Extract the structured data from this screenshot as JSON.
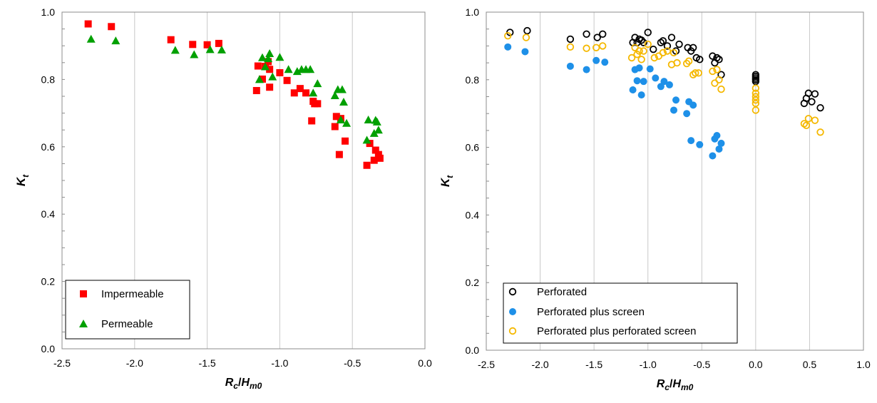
{
  "chart_data": [
    {
      "type": "scatter",
      "ylabel_main": "K",
      "ylabel_sub": "t",
      "xlabel_main_1": "R",
      "xlabel_sub_1": "c",
      "xlabel_slash": "/",
      "xlabel_main_2": "H",
      "xlabel_sub_2": "m0",
      "xlim": [
        -2.5,
        0.0
      ],
      "ylim": [
        0.0,
        1.0
      ],
      "xticks": [
        -2.5,
        -2.0,
        -1.5,
        -1.0,
        -0.5,
        0.0
      ],
      "xtick_labels": [
        "-2.5",
        "-2.0",
        "-1.5",
        "-1.0",
        "-0.5",
        "0.0"
      ],
      "yticks": [
        0.0,
        0.2,
        0.4,
        0.6,
        0.8,
        1.0
      ],
      "ytick_labels": [
        "0.0",
        "0.2",
        "0.4",
        "0.6",
        "0.8",
        "1.0"
      ],
      "grid": "vertical",
      "legend_position": "bottom-left",
      "series": [
        {
          "name": "Impermeable",
          "marker": "square",
          "color": "#ff0000",
          "x": [
            -2.32,
            -2.16,
            -1.75,
            -1.6,
            -1.5,
            -1.42,
            -1.16,
            -1.15,
            -1.12,
            -1.1,
            -1.08,
            -1.07,
            -1.07,
            -1.0,
            -0.95,
            -0.9,
            -0.86,
            -0.82,
            -0.78,
            -0.77,
            -0.76,
            -0.74,
            -0.62,
            -0.61,
            -0.59,
            -0.58,
            -0.55,
            -0.4,
            -0.38,
            -0.35,
            -0.34,
            -0.32,
            -0.31
          ],
          "y": [
            0.965,
            0.957,
            0.918,
            0.904,
            0.903,
            0.907,
            0.767,
            0.84,
            0.801,
            0.839,
            0.853,
            0.777,
            0.83,
            0.82,
            0.797,
            0.76,
            0.773,
            0.76,
            0.677,
            0.735,
            0.728,
            0.728,
            0.66,
            0.69,
            0.577,
            0.684,
            0.617,
            0.545,
            0.61,
            0.56,
            0.59,
            0.577,
            0.566
          ]
        },
        {
          "name": "Permeable",
          "marker": "triangle",
          "color": "#00a000",
          "x": [
            -2.3,
            -2.13,
            -1.72,
            -1.59,
            -1.48,
            -1.4,
            -1.14,
            -1.12,
            -1.1,
            -1.08,
            -1.07,
            -1.05,
            -1.0,
            -0.94,
            -0.88,
            -0.85,
            -0.82,
            -0.79,
            -0.77,
            -0.74,
            -0.62,
            -0.6,
            -0.58,
            -0.57,
            -0.56,
            -0.54,
            -0.4,
            -0.39,
            -0.35,
            -0.34,
            -0.33,
            -0.32
          ],
          "y": [
            0.92,
            0.915,
            0.887,
            0.874,
            0.889,
            0.888,
            0.8,
            0.865,
            0.838,
            0.862,
            0.877,
            0.808,
            0.866,
            0.83,
            0.824,
            0.83,
            0.83,
            0.83,
            0.76,
            0.788,
            0.752,
            0.77,
            0.68,
            0.77,
            0.733,
            0.67,
            0.62,
            0.68,
            0.64,
            0.679,
            0.674,
            0.65
          ]
        }
      ]
    },
    {
      "type": "scatter",
      "ylabel_main": "K",
      "ylabel_sub": "t",
      "xlabel_main_1": "R",
      "xlabel_sub_1": "c",
      "xlabel_slash": "/",
      "xlabel_main_2": "H",
      "xlabel_sub_2": "m0",
      "xlim": [
        -2.5,
        1.0
      ],
      "ylim": [
        0.0,
        1.0
      ],
      "xticks": [
        -2.5,
        -2.0,
        -1.5,
        -1.0,
        -0.5,
        0.0,
        0.5,
        1.0
      ],
      "xtick_labels": [
        "-2.5",
        "-2.0",
        "-1.5",
        "-1.0",
        "-0.5",
        "0.0",
        "0.5",
        "1.0"
      ],
      "yticks": [
        0.0,
        0.2,
        0.4,
        0.6,
        0.8,
        1.0
      ],
      "ytick_labels": [
        "0.0",
        "0.2",
        "0.4",
        "0.6",
        "0.8",
        "1.0"
      ],
      "grid": "vertical",
      "legend_position": "bottom-left",
      "series": [
        {
          "name": "Perforated",
          "marker": "open-circle",
          "color": "#000000",
          "x": [
            -2.28,
            -2.12,
            -1.72,
            -1.57,
            -1.47,
            -1.42,
            -1.14,
            -1.12,
            -1.1,
            -1.08,
            -1.06,
            -1.04,
            -1.0,
            -0.95,
            -0.88,
            -0.86,
            -0.82,
            -0.78,
            -0.74,
            -0.71,
            -0.63,
            -0.6,
            -0.58,
            -0.55,
            -0.52,
            -0.4,
            -0.38,
            -0.36,
            -0.34,
            -0.32,
            0.0,
            0.0,
            0.0,
            0.0,
            0.0,
            0.45,
            0.47,
            0.49,
            0.52,
            0.55,
            0.6
          ],
          "y": [
            0.94,
            0.945,
            0.92,
            0.935,
            0.925,
            0.935,
            0.91,
            0.925,
            0.91,
            0.92,
            0.917,
            0.91,
            0.94,
            0.89,
            0.91,
            0.915,
            0.9,
            0.925,
            0.885,
            0.905,
            0.895,
            0.885,
            0.895,
            0.865,
            0.86,
            0.87,
            0.85,
            0.865,
            0.86,
            0.815,
            0.815,
            0.81,
            0.805,
            0.8,
            0.795,
            0.73,
            0.745,
            0.76,
            0.735,
            0.758,
            0.717
          ]
        },
        {
          "name": "Perforated plus screen",
          "marker": "filled-circle",
          "color": "#1e90e8",
          "x": [
            -2.3,
            -2.14,
            -1.72,
            -1.57,
            -1.48,
            -1.4,
            -1.14,
            -1.12,
            -1.1,
            -1.08,
            -1.06,
            -1.04,
            -0.98,
            -0.93,
            -0.88,
            -0.85,
            -0.8,
            -0.76,
            -0.74,
            -0.64,
            -0.62,
            -0.6,
            -0.58,
            -0.52,
            -0.4,
            -0.38,
            -0.36,
            -0.34,
            -0.32
          ],
          "y": [
            0.897,
            0.883,
            0.84,
            0.83,
            0.857,
            0.852,
            0.77,
            0.83,
            0.797,
            0.835,
            0.755,
            0.795,
            0.832,
            0.805,
            0.78,
            0.795,
            0.785,
            0.71,
            0.74,
            0.7,
            0.735,
            0.62,
            0.725,
            0.608,
            0.575,
            0.625,
            0.635,
            0.595,
            0.612
          ]
        },
        {
          "name": "Perforated plus perforated screen",
          "marker": "open-circle",
          "color": "#f5b800",
          "x": [
            -2.3,
            -2.13,
            -1.72,
            -1.57,
            -1.48,
            -1.42,
            -1.15,
            -1.12,
            -1.1,
            -1.08,
            -1.06,
            -1.04,
            -1.0,
            -0.94,
            -0.9,
            -0.86,
            -0.82,
            -0.78,
            -0.76,
            -0.73,
            -0.64,
            -0.62,
            -0.58,
            -0.56,
            -0.53,
            -0.4,
            -0.38,
            -0.36,
            -0.34,
            -0.32,
            0.0,
            0.0,
            0.0,
            0.0,
            0.0,
            0.0,
            0.45,
            0.47,
            0.49,
            0.55,
            0.6
          ],
          "y": [
            0.93,
            0.925,
            0.897,
            0.893,
            0.895,
            0.9,
            0.865,
            0.895,
            0.875,
            0.885,
            0.86,
            0.885,
            0.905,
            0.865,
            0.87,
            0.88,
            0.885,
            0.845,
            0.88,
            0.85,
            0.848,
            0.855,
            0.815,
            0.82,
            0.82,
            0.825,
            0.79,
            0.83,
            0.8,
            0.772,
            0.775,
            0.76,
            0.75,
            0.74,
            0.73,
            0.71,
            0.67,
            0.665,
            0.685,
            0.68,
            0.645
          ]
        }
      ]
    }
  ]
}
